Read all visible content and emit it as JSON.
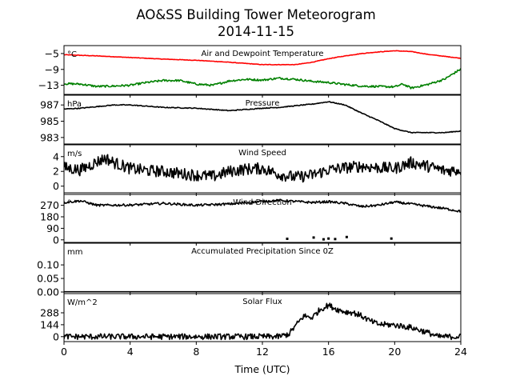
{
  "figure": {
    "title_line1": "AO&SS Building Tower Meteorogram",
    "title_line2": "2014-11-15"
  },
  "chart_data": {
    "type": "line",
    "x_axis": {
      "label": "Time (UTC)",
      "range": [
        0,
        24
      ],
      "ticks": [
        0,
        4,
        8,
        12,
        16,
        20,
        24
      ],
      "tick_labels": [
        "0",
        "4",
        "8",
        "12",
        "16",
        "20",
        "24"
      ]
    },
    "grid": false,
    "panels": [
      {
        "title": "Air and Dewpoint Temperature",
        "unit": "°C",
        "ylim": [
          -15.3,
          -3.0
        ],
        "yticks": [
          -5,
          -9,
          -13
        ],
        "ytick_labels": [
          "−5",
          "−9",
          "−13"
        ],
        "series": [
          {
            "color": "#ff0000",
            "style": "line",
            "noise": 0.06,
            "x": [
              0,
              2,
              4,
              6,
              8,
              10,
              12,
              14,
              15,
              16,
              17,
              18,
              19,
              20,
              21,
              22,
              23,
              24
            ],
            "y": [
              -5.3,
              -5.6,
              -6.0,
              -6.4,
              -6.7,
              -7.2,
              -7.8,
              -7.8,
              -7.2,
              -6.3,
              -5.6,
              -5.0,
              -4.6,
              -4.3,
              -4.5,
              -5.2,
              -5.7,
              -6.2
            ]
          },
          {
            "color": "#008000",
            "style": "line",
            "noise": 0.25,
            "x": [
              0,
              1,
              2,
              3,
              4,
              5,
              6,
              7,
              8,
              9,
              10,
              11,
              12,
              13,
              14,
              15,
              16,
              17,
              18,
              19,
              20,
              20.5,
              21,
              22,
              23,
              24
            ],
            "y": [
              -12.6,
              -12.7,
              -13.3,
              -13.2,
              -13.0,
              -12.3,
              -11.8,
              -11.8,
              -12.7,
              -13.0,
              -11.9,
              -11.5,
              -11.7,
              -11.2,
              -11.5,
              -12.0,
              -12.3,
              -12.8,
              -13.2,
              -13.3,
              -13.4,
              -12.7,
              -13.7,
              -12.8,
              -11.5,
              -8.9
            ]
          }
        ]
      },
      {
        "title": "Pressure",
        "unit": "hPa",
        "ylim": [
          982.2,
          988.2
        ],
        "yticks": [
          987,
          985,
          983
        ],
        "ytick_labels": [
          "987",
          "985",
          "983"
        ],
        "series": [
          {
            "color": "#000000",
            "style": "line",
            "noise": 0.05,
            "x": [
              0,
              1,
              2,
              3,
              4,
              6,
              8,
              10,
              12,
              13,
              14,
              15,
              16,
              17,
              18,
              19,
              20,
              21,
              22,
              23,
              24
            ],
            "y": [
              986.5,
              986.6,
              986.8,
              987.0,
              987.0,
              986.7,
              986.6,
              986.3,
              986.6,
              986.7,
              986.9,
              987.1,
              987.4,
              987.0,
              986.0,
              985.1,
              984.1,
              983.6,
              983.6,
              983.6,
              983.8
            ]
          }
        ]
      },
      {
        "title": "Wind Speed",
        "unit": "m/s",
        "ylim": [
          -0.9,
          5.6
        ],
        "yticks": [
          4,
          2,
          0
        ],
        "ytick_labels": [
          "4",
          "2",
          "0"
        ],
        "series": [
          {
            "color": "#000000",
            "style": "line",
            "noise": 0.8,
            "x": [
              0,
              1,
              2,
              2.5,
              3,
              4,
              5,
              6,
              7,
              8,
              9,
              10,
              11,
              12,
              13,
              14,
              15,
              16,
              17,
              18,
              19,
              20,
              21,
              22,
              23,
              24
            ],
            "y": [
              2.5,
              2.2,
              3.3,
              3.8,
              3.2,
              2.4,
              2.1,
              2.0,
              1.7,
              1.5,
              1.3,
              2.0,
              2.3,
              2.4,
              1.6,
              1.2,
              1.5,
              2.2,
              2.5,
              2.7,
              2.5,
              2.4,
              3.2,
              2.7,
              2.1,
              2.2
            ]
          }
        ]
      },
      {
        "title": "Wind Direction",
        "unit": "°",
        "ylim": [
          -20,
          355
        ],
        "yticks": [
          270,
          180,
          90,
          0
        ],
        "ytick_labels": [
          "270",
          "180",
          "90",
          "0"
        ],
        "series": [
          {
            "color": "#000000",
            "style": "line",
            "noise": 9,
            "x": [
              0,
              1,
              2,
              4,
              6,
              8,
              10,
              12,
              13,
              14,
              15,
              16,
              17,
              18,
              19,
              20,
              21,
              22,
              23,
              24
            ],
            "y": [
              292,
              305,
              270,
              272,
              285,
              270,
              280,
              300,
              308,
              300,
              292,
              298,
              285,
              260,
              270,
              295,
              280,
              262,
              245,
              222
            ]
          },
          {
            "color": "#000000",
            "style": "markers",
            "x": [
              13.5,
              15.1,
              15.7,
              16.0,
              16.4,
              17.1,
              19.8
            ],
            "y": [
              8,
              18,
              4,
              10,
              6,
              22,
              10
            ]
          }
        ]
      },
      {
        "title": "Accumulated Precipitation Since 0Z",
        "unit": "mm",
        "ylim": [
          0,
          0.18
        ],
        "yticks": [
          0.1,
          0.05,
          0.0
        ],
        "ytick_labels": [
          "0.10",
          "0.05",
          "0.00"
        ],
        "series": [
          {
            "color": "#000000",
            "style": "line",
            "noise": 0,
            "x": [
              0,
              24
            ],
            "y": [
              0,
              0
            ]
          }
        ]
      },
      {
        "title": "Solar Flux",
        "unit": "W/m^2",
        "ylim": [
          -60,
          520
        ],
        "yticks": [
          288,
          144,
          0
        ],
        "ytick_labels": [
          "288",
          "144",
          "0"
        ],
        "series": [
          {
            "color": "#000000",
            "style": "line",
            "noise": 35,
            "x": [
              0,
              13,
              13.6,
              14,
              14.5,
              15,
              15.5,
              16,
              16.5,
              17,
              17.5,
              18,
              18.5,
              19,
              20,
              21,
              22,
              22.6,
              24
            ],
            "y": [
              0,
              0,
              30,
              130,
              250,
              230,
              330,
              380,
              330,
              300,
              290,
              250,
              190,
              150,
              140,
              110,
              50,
              0,
              0
            ]
          }
        ]
      }
    ]
  }
}
